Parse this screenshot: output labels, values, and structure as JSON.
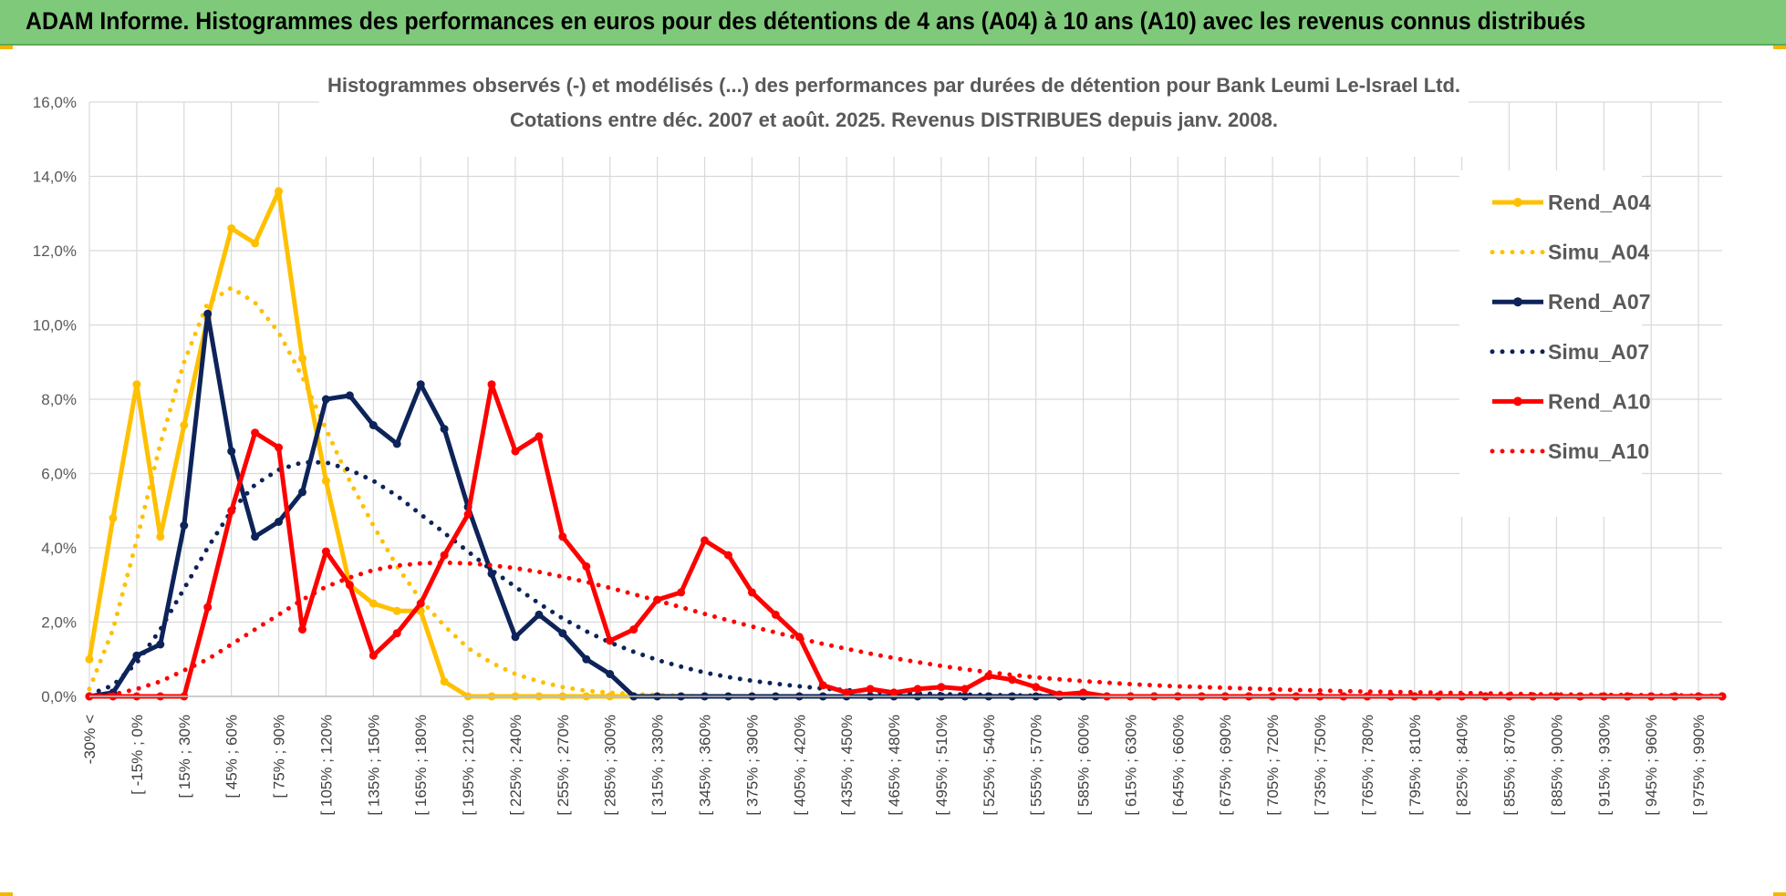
{
  "header": {
    "title": "ADAM Informe. Histogrammes des performances en euros pour des détentions de 4 ans (A04) à 10 ans (A10) avec les revenus connus distribués"
  },
  "colors": {
    "header_bg": "#7fc97a",
    "gold": "#ffc000",
    "navy": "#0d2359",
    "red": "#ff0000",
    "grid": "#d9d9d9",
    "axis_text": "#595959"
  },
  "chart_data": {
    "type": "line",
    "title": "Histogrammes observés (-) et modélisés (...) des performances par durées de détention pour Bank Leumi Le-Israel Ltd.",
    "subtitle": "Cotations entre déc. 2007 et août. 2025. Revenus DISTRIBUES depuis janv. 2008.",
    "xlabel": "",
    "ylabel": "",
    "ylim": [
      0,
      16
    ],
    "y_ticks": [
      "0,0%",
      "2,0%",
      "4,0%",
      "6,0%",
      "8,0%",
      "10,0%",
      "12,0%",
      "14,0%",
      "16,0%"
    ],
    "grid": true,
    "legend_position": "top-right",
    "x_tick_labels": [
      "-30% <",
      "[ -15% ; 0%",
      "[ 15% ; 30%",
      "[ 45% ; 60%",
      "[ 75% ; 90%",
      "[ 105% ; 120%",
      "[ 135% ; 150%",
      "[ 165% ; 180%",
      "[ 195% ; 210%",
      "[ 225% ; 240%",
      "[ 255% ; 270%",
      "[ 285% ; 300%",
      "[ 315% ; 330%",
      "[ 345% ; 360%",
      "[ 375% ; 390%",
      "[ 405% ; 420%",
      "[ 435% ; 450%",
      "[ 465% ; 480%",
      "[ 495% ; 510%",
      "[ 525% ; 540%",
      "[ 555% ; 570%",
      "[ 585% ; 600%",
      "[ 615% ; 630%",
      "[ 645% ; 660%",
      "[ 675% ; 690%",
      "[ 705% ; 720%",
      "[ 735% ; 750%",
      "[ 765% ; 780%",
      "[ 795% ; 810%",
      "[ 825% ; 840%",
      "[ 855% ; 870%",
      "[ 885% ; 900%",
      "[ 915% ; 930%",
      "[ 945% ; 960%",
      "[ 975% ; 990%"
    ],
    "series": [
      {
        "name": "Rend_A04",
        "style": "solid",
        "markers": true,
        "color": "#ffc000",
        "values": [
          1.0,
          4.8,
          8.4,
          4.3,
          7.3,
          10.2,
          12.6,
          12.2,
          13.6,
          9.1,
          5.8,
          3.0,
          2.5,
          2.3,
          2.3,
          0.4,
          0,
          0,
          0,
          0,
          0,
          0,
          0,
          0,
          0,
          0,
          0,
          0,
          0,
          0,
          0,
          0,
          0,
          0,
          0,
          0,
          0,
          0,
          0,
          0,
          0,
          0,
          0,
          0,
          0,
          0,
          0,
          0,
          0,
          0,
          0,
          0,
          0,
          0,
          0,
          0,
          0,
          0,
          0,
          0,
          0,
          0,
          0,
          0,
          0,
          0,
          0,
          0,
          0,
          0
        ]
      },
      {
        "name": "Simu_A04",
        "style": "dotted",
        "markers": false,
        "color": "#ffc000",
        "values": [
          0.2,
          1.8,
          4.2,
          6.8,
          9.0,
          10.6,
          11.0,
          10.6,
          9.8,
          8.6,
          7.2,
          5.8,
          4.6,
          3.5,
          2.6,
          1.9,
          1.3,
          0.9,
          0.6,
          0.4,
          0.25,
          0.15,
          0.1,
          0.06,
          0.04,
          0.02,
          0,
          0,
          0,
          0,
          0,
          0,
          0,
          0,
          0,
          0,
          0,
          0,
          0,
          0,
          0,
          0,
          0,
          0,
          0,
          0,
          0,
          0,
          0,
          0,
          0,
          0,
          0,
          0,
          0,
          0,
          0,
          0,
          0,
          0,
          0,
          0,
          0,
          0,
          0,
          0,
          0,
          0,
          0,
          0
        ]
      },
      {
        "name": "Rend_A07",
        "style": "solid",
        "markers": true,
        "color": "#0d2359",
        "values": [
          0,
          0.1,
          1.1,
          1.4,
          4.6,
          10.3,
          6.6,
          4.3,
          4.7,
          5.5,
          8.0,
          8.1,
          7.3,
          6.8,
          8.4,
          7.2,
          5.1,
          3.3,
          1.6,
          2.2,
          1.7,
          1.0,
          0.6,
          0,
          0,
          0,
          0,
          0,
          0,
          0,
          0,
          0,
          0,
          0,
          0,
          0,
          0,
          0,
          0,
          0,
          0,
          0,
          0,
          0,
          0,
          0,
          0,
          0,
          0,
          0,
          0,
          0,
          0,
          0,
          0,
          0,
          0,
          0,
          0,
          0,
          0,
          0,
          0,
          0,
          0,
          0,
          0,
          0,
          0,
          0
        ]
      },
      {
        "name": "Simu_A07",
        "style": "dotted",
        "markers": false,
        "color": "#0d2359",
        "values": [
          0.05,
          0.3,
          0.9,
          1.8,
          2.9,
          4.0,
          5.0,
          5.7,
          6.1,
          6.3,
          6.3,
          6.1,
          5.8,
          5.4,
          4.9,
          4.4,
          3.9,
          3.4,
          2.95,
          2.5,
          2.1,
          1.75,
          1.45,
          1.2,
          0.98,
          0.8,
          0.64,
          0.52,
          0.42,
          0.34,
          0.27,
          0.21,
          0.17,
          0.13,
          0.1,
          0.08,
          0.06,
          0.05,
          0.04,
          0.03,
          0.02,
          0.01,
          0,
          0,
          0,
          0,
          0,
          0,
          0,
          0,
          0,
          0,
          0,
          0,
          0,
          0,
          0,
          0,
          0,
          0,
          0,
          0,
          0,
          0,
          0,
          0,
          0,
          0,
          0,
          0
        ]
      },
      {
        "name": "Rend_A10",
        "style": "solid",
        "markers": true,
        "color": "#ff0000",
        "values": [
          0,
          0,
          0,
          0,
          0,
          2.4,
          5.0,
          7.1,
          6.7,
          1.8,
          3.9,
          3.0,
          1.1,
          1.7,
          2.5,
          3.8,
          4.9,
          8.4,
          6.6,
          7.0,
          4.3,
          3.5,
          1.5,
          1.8,
          2.6,
          2.8,
          4.2,
          3.8,
          2.8,
          2.2,
          1.6,
          0.3,
          0.1,
          0.2,
          0.1,
          0.2,
          0.25,
          0.2,
          0.55,
          0.45,
          0.25,
          0.05,
          0.1,
          0,
          0,
          0,
          0,
          0,
          0,
          0,
          0,
          0,
          0,
          0,
          0,
          0,
          0,
          0,
          0,
          0,
          0,
          0,
          0,
          0,
          0,
          0,
          0,
          0,
          0,
          0
        ]
      },
      {
        "name": "Simu_A10",
        "style": "dotted",
        "markers": false,
        "color": "#ff0000",
        "values": [
          0,
          0.05,
          0.2,
          0.4,
          0.7,
          1.0,
          1.4,
          1.8,
          2.2,
          2.6,
          2.95,
          3.2,
          3.4,
          3.52,
          3.58,
          3.6,
          3.58,
          3.53,
          3.45,
          3.35,
          3.22,
          3.08,
          2.92,
          2.75,
          2.58,
          2.4,
          2.22,
          2.05,
          1.88,
          1.72,
          1.56,
          1.41,
          1.28,
          1.15,
          1.03,
          0.92,
          0.82,
          0.73,
          0.65,
          0.58,
          0.51,
          0.46,
          0.41,
          0.37,
          0.33,
          0.3,
          0.27,
          0.25,
          0.23,
          0.21,
          0.19,
          0.17,
          0.16,
          0.14,
          0.13,
          0.12,
          0.11,
          0.1,
          0.09,
          0.08,
          0.07,
          0.06,
          0.05,
          0.05,
          0.04,
          0.04,
          0.03,
          0.03,
          0.02,
          0.02
        ]
      }
    ]
  }
}
